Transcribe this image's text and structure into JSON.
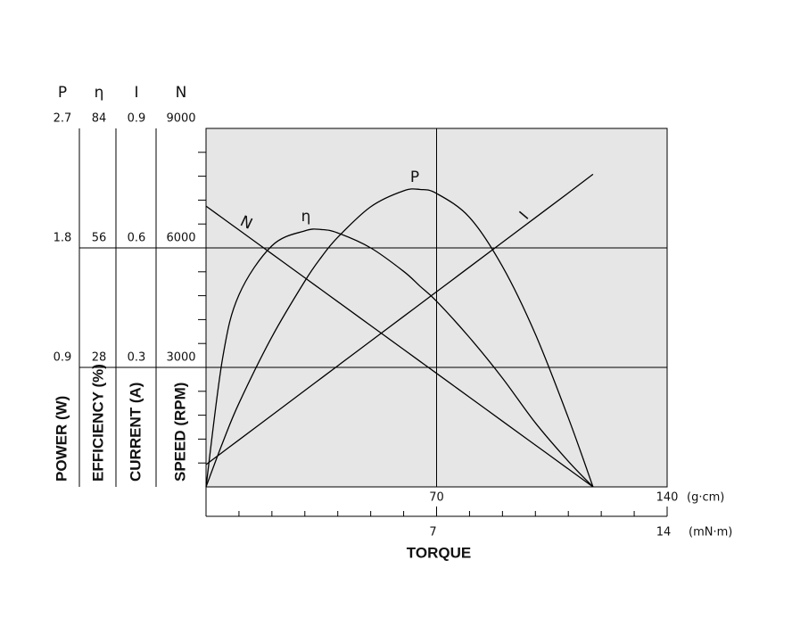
{
  "chart_data": {
    "type": "line",
    "axes": [
      {
        "symbol": "P",
        "label": "POWER (W)",
        "lim": [
          0,
          2.7
        ],
        "ticks": [
          0.9,
          1.8,
          2.7
        ]
      },
      {
        "symbol": "η",
        "label": "EFFICIENCY (%)",
        "lim": [
          0,
          84
        ],
        "ticks": [
          28,
          56,
          84
        ]
      },
      {
        "symbol": "I",
        "label": "CURRENT (A)",
        "lim": [
          0,
          0.9
        ],
        "ticks": [
          0.3,
          0.6,
          0.9
        ]
      },
      {
        "symbol": "N",
        "label": "SPEED (RPM)",
        "lim": [
          0,
          9000
        ],
        "ticks": [
          3000,
          6000,
          9000
        ],
        "minorticks": [
          600,
          1200,
          1800,
          2400,
          3600,
          4200,
          4800,
          5400,
          6600,
          7200,
          7800,
          8400
        ]
      }
    ],
    "x_label": "TORQUE",
    "x_unit": "(g·cm)",
    "xlim": [
      0,
      140
    ],
    "xticks": [
      70,
      140
    ],
    "x2_unit": "(mN·m)",
    "x2lim": [
      0,
      14
    ],
    "x2ticks": [
      7,
      14
    ],
    "x2minorticks": [
      1,
      2,
      3,
      4,
      5,
      6,
      8,
      9,
      10,
      11,
      12,
      13
    ],
    "grid": true,
    "plot_background": "#e6e6e6",
    "x": [
      0,
      5,
      10,
      20,
      30,
      35,
      40,
      50,
      60,
      65,
      70,
      80,
      90,
      100,
      110,
      117.5
    ],
    "series": [
      {
        "name": "N",
        "axis": 3,
        "color": "#000000",
        "values": [
          7050,
          6750,
          6450,
          5850,
          5250,
          4950,
          4650,
          4050,
          3450,
          3150,
          2850,
          2250,
          1650,
          1050,
          450,
          0
        ]
      },
      {
        "name": "η",
        "axis": 1,
        "color": "#000000",
        "values": [
          0,
          30,
          45,
          56.5,
          60,
          60.3,
          59.5,
          56,
          50.5,
          47,
          43.5,
          35,
          25.5,
          15,
          6,
          0
        ]
      },
      {
        "name": "P",
        "axis": 0,
        "color": "#000000",
        "values": [
          0,
          0.33,
          0.63,
          1.13,
          1.55,
          1.73,
          1.88,
          2.11,
          2.23,
          2.24,
          2.21,
          2.03,
          1.66,
          1.15,
          0.52,
          0
        ]
      },
      {
        "name": "I",
        "axis": 2,
        "color": "#000000",
        "values": [
          0.056,
          0.087,
          0.118,
          0.18,
          0.242,
          0.273,
          0.304,
          0.366,
          0.428,
          0.459,
          0.49,
          0.552,
          0.614,
          0.676,
          0.738,
          0.785
        ]
      }
    ]
  }
}
